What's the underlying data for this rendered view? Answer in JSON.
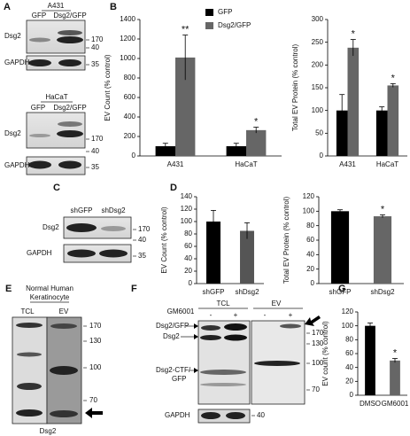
{
  "figure": {
    "A": {
      "letter": "A",
      "cell_lines": [
        "A431",
        "HaCaT"
      ],
      "lanes": [
        "GFP",
        "Dsg2/GFP"
      ],
      "proteins": [
        "Dsg2",
        "GAPDH"
      ],
      "markers": [
        "170",
        "40",
        "35"
      ]
    },
    "B": {
      "letter": "B"
    },
    "C": {
      "letter": "C",
      "lanes": [
        "shGFP",
        "shDsg2"
      ],
      "proteins": [
        "Dsg2",
        "GAPDH"
      ],
      "markers": [
        "170",
        "40",
        "35"
      ]
    },
    "D": {
      "letter": "D"
    },
    "E": {
      "letter": "E",
      "title": [
        "Normal Human",
        "Keratinocyte"
      ],
      "lanes": [
        "TCL",
        "EV"
      ],
      "markers": [
        "170",
        "130",
        "100",
        "70"
      ],
      "protein": "Dsg2"
    },
    "F": {
      "letter": "F",
      "lanes": [
        "TCL",
        "EV"
      ],
      "treatment": "GM6001",
      "treatment_states": [
        "-",
        "+",
        "-",
        "+"
      ],
      "labels": [
        "Dsg2/GFP",
        "Dsg2",
        "Dsg2-CTF/",
        "GFP"
      ],
      "markers": [
        "170",
        "130",
        "100",
        "70"
      ],
      "loading": "GAPDH",
      "loading_marker": "40"
    },
    "G": {
      "letter": "G"
    }
  },
  "chart_data": [
    {
      "type": "bar",
      "y_label": "EV Count (% control)",
      "categories": [
        "A431",
        "HaCaT"
      ],
      "series": [
        {
          "name": "GFP",
          "color": "#000000",
          "values": [
            100,
            100
          ],
          "errors": [
            30,
            30
          ]
        },
        {
          "name": "Dsg2/GFP",
          "color": "#666666",
          "values": [
            1010,
            265
          ],
          "errors": [
            230,
            30
          ],
          "annotations": [
            "**",
            "*"
          ]
        }
      ],
      "ylim": [
        0,
        1400
      ],
      "yticks": [
        0,
        200,
        400,
        600,
        800,
        1000,
        1200,
        1400
      ],
      "legend": true
    },
    {
      "type": "bar",
      "y_label": "Total EV Protein (% control)",
      "categories": [
        "A431",
        "HaCaT"
      ],
      "series": [
        {
          "color": "#000000",
          "values": [
            100,
            100
          ],
          "errors": [
            35,
            8
          ]
        },
        {
          "color": "#666666",
          "values": [
            238,
            155
          ],
          "errors": [
            18,
            4
          ],
          "annotations": [
            "*",
            "*"
          ]
        }
      ],
      "ylim": [
        0,
        300
      ],
      "yticks": [
        0,
        50,
        100,
        150,
        200,
        250,
        300
      ]
    },
    {
      "type": "bar",
      "y_label": "EV Count (% control)",
      "categories": [
        "shGFP",
        "shDsg2"
      ],
      "series": [
        {
          "colors": [
            "#000000",
            "#555555"
          ],
          "values": [
            100,
            85
          ],
          "errors": [
            18,
            13
          ]
        }
      ],
      "ylim": [
        0,
        140
      ],
      "yticks": [
        0,
        20,
        40,
        60,
        80,
        100,
        120,
        140
      ]
    },
    {
      "type": "bar",
      "y_label": "Total EV Protein (% control)",
      "categories": [
        "shGFP",
        "shDsg2"
      ],
      "series": [
        {
          "colors": [
            "#000000",
            "#666666"
          ],
          "values": [
            100,
            93
          ],
          "errors": [
            2,
            2
          ],
          "annotations": [
            null,
            "*"
          ]
        }
      ],
      "ylim": [
        0,
        120
      ],
      "yticks": [
        0,
        20,
        40,
        60,
        80,
        100,
        120
      ]
    },
    {
      "type": "bar",
      "y_label": "EV count (% control)",
      "categories": [
        "DMSO",
        "GM6001"
      ],
      "series": [
        {
          "colors": [
            "#000000",
            "#666666"
          ],
          "values": [
            100,
            50
          ],
          "errors": [
            4,
            3
          ],
          "annotations": [
            null,
            "*"
          ]
        }
      ],
      "ylim": [
        0,
        120
      ],
      "yticks": [
        0,
        20,
        40,
        60,
        80,
        100,
        120
      ]
    }
  ]
}
